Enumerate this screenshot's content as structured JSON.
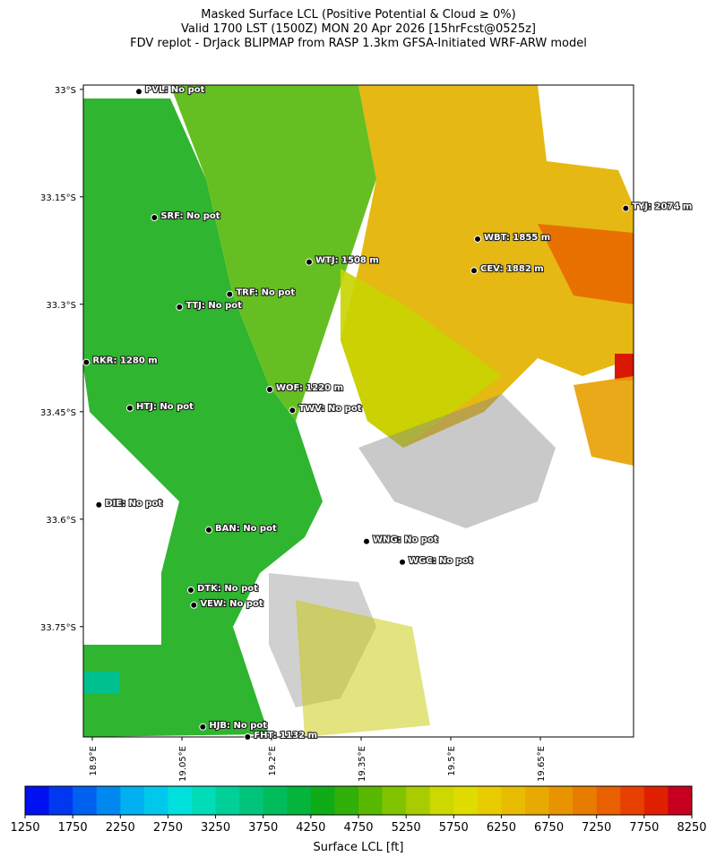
{
  "title": [
    "Masked Surface LCL (Positive Potential & Cloud ≥ 0%)",
    "Valid 1700 LST (1500Z) MON 20 Apr 2026 [15hrFcst@0525z]",
    "FDV replot - DrJack BLIPMAP from RASP 1.3km GFSA-Initiated WRF-ARW model"
  ],
  "map": {
    "xlim": [
      18.885,
      19.806
    ],
    "ylim": [
      -33.904,
      -32.994
    ],
    "xticks": [
      {
        "value": 18.9,
        "label": "18.9°E"
      },
      {
        "value": 19.05,
        "label": "19.05°E"
      },
      {
        "value": 19.2,
        "label": "19.2°E"
      },
      {
        "value": 19.35,
        "label": "19.35°E"
      },
      {
        "value": 19.5,
        "label": "19.5°E"
      },
      {
        "value": 19.65,
        "label": "19.65°E"
      }
    ],
    "yticks": [
      {
        "value": -33.0,
        "label": "33°S"
      },
      {
        "value": -33.15,
        "label": "33.15°S"
      },
      {
        "value": -33.3,
        "label": "33.3°S"
      },
      {
        "value": -33.45,
        "label": "33.45°S"
      },
      {
        "value": -33.6,
        "label": "33.6°S"
      },
      {
        "value": -33.75,
        "label": "33.75°S"
      }
    ],
    "stations": [
      {
        "label": "PVL: No pot",
        "lon": 18.978,
        "lat": -33.003
      },
      {
        "label": "SRF: No pot",
        "lon": 19.004,
        "lat": -33.179
      },
      {
        "label": "TYJ: 2074 m",
        "lon": 19.793,
        "lat": -33.166
      },
      {
        "label": "WBT: 1855 m",
        "lon": 19.545,
        "lat": -33.209
      },
      {
        "label": "WTJ: 1508 m",
        "lon": 19.263,
        "lat": -33.241
      },
      {
        "label": "CEV: 1882 m",
        "lon": 19.539,
        "lat": -33.253
      },
      {
        "label": "TRF: No pot",
        "lon": 19.13,
        "lat": -33.286
      },
      {
        "label": "TTJ: No pot",
        "lon": 19.046,
        "lat": -33.304
      },
      {
        "label": "RKR: 1280 m",
        "lon": 18.89,
        "lat": -33.381
      },
      {
        "label": "WOF: 1220 m",
        "lon": 19.197,
        "lat": -33.419
      },
      {
        "label": "HTJ: No pot",
        "lon": 18.963,
        "lat": -33.445
      },
      {
        "label": "TWV: No pot",
        "lon": 19.235,
        "lat": -33.448
      },
      {
        "label": "DIE: No pot",
        "lon": 18.911,
        "lat": -33.58
      },
      {
        "label": "BAN: No pot",
        "lon": 19.095,
        "lat": -33.615
      },
      {
        "label": "WNG: No pot",
        "lon": 19.359,
        "lat": -33.631
      },
      {
        "label": "WGC: No pot",
        "lon": 19.419,
        "lat": -33.66
      },
      {
        "label": "DTK: No pot",
        "lon": 19.065,
        "lat": -33.699
      },
      {
        "label": "VEW: No pot",
        "lon": 19.07,
        "lat": -33.72
      },
      {
        "label": "HJB: No pot",
        "lon": 19.085,
        "lat": -33.89
      },
      {
        "label": "FHT: 1132 m",
        "lon": 19.16,
        "lat": -33.904
      }
    ]
  },
  "colorbar": {
    "label": "Surface LCL [ft]",
    "lim": [
      1250,
      8250
    ],
    "ticks": [
      1250,
      1750,
      2250,
      2750,
      3250,
      3750,
      4250,
      4750,
      5250,
      5750,
      6250,
      6750,
      7250,
      7750,
      8250
    ],
    "colors": [
      "#0010f0",
      "#0038f0",
      "#0060f0",
      "#0088f0",
      "#00b0f0",
      "#00c8ec",
      "#00e0dc",
      "#00dcb8",
      "#00d098",
      "#00c47c",
      "#00bc5c",
      "#04b43c",
      "#10ac18",
      "#30b008",
      "#58b800",
      "#80c400",
      "#a8cc00",
      "#ccd800",
      "#e0dc00",
      "#e8cc00",
      "#e8bc00",
      "#e8aa00",
      "#e89400",
      "#e87c00",
      "#e86000",
      "#e84000",
      "#e02000",
      "#c80020"
    ]
  }
}
